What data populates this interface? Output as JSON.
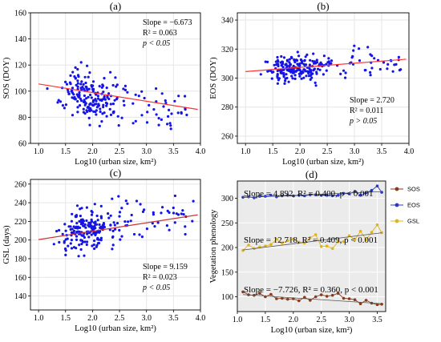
{
  "colors": {
    "scatter_point": "#1414e6",
    "fit_line": "#ff3333",
    "fit_line_c": "#cc3333",
    "sos": "#8b3a1a",
    "eos": "#2838c8",
    "gsl": "#e0b41a",
    "trend": "#555555",
    "grid": "#e6e6e6",
    "panel_d_bg": "#ebebeb"
  },
  "chart_data": [
    {
      "id": "a",
      "type": "scatter",
      "title": "(a)",
      "xlabel": "Log10 (urban size, km²)",
      "ylabel": "SOS (DOY)",
      "xlim": [
        0.85,
        4.0
      ],
      "ylim": [
        60,
        160
      ],
      "xticks": [
        "1.0",
        "1.5",
        "2.0",
        "2.5",
        "3.0",
        "3.5",
        "4.0"
      ],
      "yticks": [
        "60",
        "80",
        "100",
        "120",
        "140",
        "160"
      ],
      "grid": true,
      "fit": {
        "x": [
          1.0,
          3.95
        ],
        "y": [
          105.5,
          86
        ]
      },
      "annotation": [
        "Slope = −6.673",
        "R² = 0.063",
        "p < 0.05"
      ],
      "seed": 11,
      "n": 230,
      "y_mean": 96,
      "slope": -6.673,
      "spread": 22,
      "yclip": [
        70,
        155
      ]
    },
    {
      "id": "b",
      "type": "scatter",
      "title": "(b)",
      "xlabel": "Log10 (urban size, km²)",
      "ylabel": "EOS (DOY)",
      "xlim": [
        0.85,
        4.0
      ],
      "ylim": [
        255,
        345
      ],
      "xticks": [
        "1.0",
        "1.5",
        "2.0",
        "2.5",
        "3.0",
        "3.5",
        "4.0"
      ],
      "yticks": [
        "260",
        "280",
        "300",
        "320",
        "340"
      ],
      "grid": true,
      "fit": {
        "x": [
          1.0,
          3.95
        ],
        "y": [
          304.5,
          313
        ]
      },
      "annotation": [
        "Slope = 2.720",
        "R² = 0.011",
        "p > 0.05"
      ],
      "seed": 23,
      "n": 230,
      "y_mean": 307,
      "slope": 2.72,
      "spread": 12,
      "yclip": [
        262,
        342
      ]
    },
    {
      "id": "c",
      "type": "scatter",
      "title": "(c)",
      "xlabel": "Log10 (urban size, km²)",
      "ylabel": "GSL (days)",
      "xlim": [
        0.85,
        4.0
      ],
      "ylim": [
        125,
        265
      ],
      "xticks": [
        "1.0",
        "1.5",
        "2.0",
        "2.5",
        "3.0",
        "3.5",
        "4.0"
      ],
      "yticks": [
        "140",
        "160",
        "180",
        "200",
        "220",
        "240",
        "260"
      ],
      "grid": true,
      "fit": {
        "x": [
          1.0,
          3.95
        ],
        "y": [
          200.5,
          227
        ]
      },
      "annotation": [
        "Slope = 9.159",
        "R² = 0.023",
        "p < 0.05"
      ],
      "seed": 37,
      "n": 230,
      "y_mean": 212,
      "slope": 9.159,
      "spread": 30,
      "yclip": [
        128,
        262
      ]
    },
    {
      "id": "d",
      "type": "line",
      "title": "(d)",
      "xlabel": "Log10 (urban size, km²)",
      "ylabel": "Vegetation phenology",
      "xlim": [
        1.0,
        3.65
      ],
      "ylim": [
        70,
        335
      ],
      "xticks": [
        "1.0",
        "1.5",
        "2.0",
        "2.5",
        "3.0",
        "3.5"
      ],
      "yticks": [
        "100",
        "150",
        "200",
        "250",
        "300"
      ],
      "grid": true,
      "legend": [
        "SOS",
        "EOS",
        "GSL"
      ],
      "legend_position": "right, outside",
      "x": [
        1.1,
        1.2,
        1.3,
        1.4,
        1.5,
        1.6,
        1.7,
        1.8,
        1.9,
        2.0,
        2.1,
        2.2,
        2.3,
        2.4,
        2.5,
        2.6,
        2.7,
        2.8,
        2.9,
        3.0,
        3.1,
        3.2,
        3.3,
        3.4,
        3.5,
        3.58
      ],
      "series": [
        {
          "name": "SOS",
          "values": [
            110,
            104,
            103,
            107,
            100,
            105,
            96,
            97,
            95,
            96,
            92,
            99,
            93,
            100,
            104,
            101,
            103,
            107,
            97,
            96,
            94,
            86,
            93,
            87,
            84,
            85
          ]
        },
        {
          "name": "EOS",
          "values": [
            302,
            303,
            301,
            304,
            304,
            306,
            303,
            305,
            306,
            305,
            306,
            305,
            307,
            307,
            306,
            306,
            305,
            306,
            310,
            309,
            314,
            306,
            311,
            316,
            325,
            312
          ]
        },
        {
          "name": "GSL",
          "values": [
            194,
            205,
            198,
            201,
            203,
            206,
            217,
            209,
            214,
            217,
            211,
            209,
            220,
            226,
            202,
            203,
            198,
            212,
            212,
            224,
            216,
            233,
            216,
            231,
            246,
            230
          ]
        }
      ],
      "trends": [
        {
          "series": "SOS",
          "y": [
            104.5,
            86
          ]
        },
        {
          "series": "EOS",
          "y": [
            301.5,
            313.5
          ]
        },
        {
          "series": "GSL",
          "y": [
            195,
            230
          ]
        }
      ],
      "annotations": [
        "Slope = 4.892, R² = 0.400, p < 0.001",
        "Slope = 12.718, R² = 0.409, p < 0.001",
        "Slope = −7.726, R² = 0.360, p < 0.001"
      ]
    }
  ]
}
